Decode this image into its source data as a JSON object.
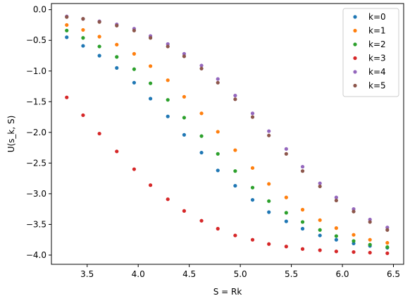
{
  "chart_data": {
    "type": "scatter",
    "title": "",
    "xlabel": "S = Rk",
    "ylabel": "U(s_k, S)",
    "xlim": [
      3.15,
      6.6
    ],
    "ylim": [
      -4.15,
      0.1
    ],
    "xticks": [
      "3.5",
      "4.0",
      "4.5",
      "5.0",
      "5.5",
      "6.0",
      "6.5"
    ],
    "xtick_values": [
      3.5,
      4.0,
      4.5,
      5.0,
      5.5,
      6.0,
      6.5
    ],
    "yticks": [
      "0.0",
      "−0.5",
      "−1.0",
      "−1.5",
      "−2.0",
      "−2.5",
      "−3.0",
      "−3.5",
      "−4.0"
    ],
    "ytick_values": [
      0.0,
      -0.5,
      -1.0,
      -1.5,
      -2.0,
      -2.5,
      -3.0,
      -3.5,
      -4.0
    ],
    "grid": false,
    "legend_position": "top-right",
    "x": [
      3.3,
      3.46,
      3.62,
      3.79,
      3.96,
      4.12,
      4.29,
      4.45,
      4.62,
      4.78,
      4.95,
      5.12,
      5.28,
      5.45,
      5.61,
      5.78,
      5.94,
      6.11,
      6.27,
      6.44
    ],
    "series": [
      {
        "name": "k=0",
        "color": "#1f77b4",
        "values": [
          -0.45,
          -0.59,
          -0.75,
          -0.95,
          -1.19,
          -1.45,
          -1.74,
          -2.04,
          -2.33,
          -2.62,
          -2.87,
          -3.1,
          -3.3,
          -3.45,
          -3.57,
          -3.68,
          -3.75,
          -3.81,
          -3.85,
          -3.88
        ]
      },
      {
        "name": "k=1",
        "color": "#ff7f0e",
        "values": [
          -0.25,
          -0.33,
          -0.44,
          -0.57,
          -0.72,
          -0.92,
          -1.15,
          -1.42,
          -1.69,
          -1.99,
          -2.29,
          -2.58,
          -2.84,
          -3.06,
          -3.26,
          -3.43,
          -3.56,
          -3.67,
          -3.75,
          -3.8
        ]
      },
      {
        "name": "k=2",
        "color": "#2ca02c",
        "values": [
          -0.34,
          -0.46,
          -0.6,
          -0.77,
          -0.97,
          -1.2,
          -1.47,
          -1.76,
          -2.06,
          -2.35,
          -2.63,
          -2.9,
          -3.12,
          -3.31,
          -3.46,
          -3.59,
          -3.69,
          -3.77,
          -3.83,
          -3.87
        ]
      },
      {
        "name": "k=3",
        "color": "#d62728",
        "values": [
          -1.43,
          -1.72,
          -2.02,
          -2.31,
          -2.6,
          -2.86,
          -3.09,
          -3.28,
          -3.44,
          -3.57,
          -3.68,
          -3.75,
          -3.82,
          -3.86,
          -3.9,
          -3.92,
          -3.94,
          -3.95,
          -3.96,
          -3.97
        ]
      },
      {
        "name": "k=4",
        "color": "#9467bd",
        "values": [
          -0.11,
          -0.15,
          -0.19,
          -0.24,
          -0.31,
          -0.43,
          -0.56,
          -0.72,
          -0.91,
          -1.13,
          -1.4,
          -1.69,
          -1.98,
          -2.27,
          -2.56,
          -2.83,
          -3.06,
          -3.25,
          -3.42,
          -3.55
        ]
      },
      {
        "name": "k=5",
        "color": "#8c564b",
        "values": [
          -0.12,
          -0.15,
          -0.2,
          -0.26,
          -0.34,
          -0.46,
          -0.6,
          -0.76,
          -0.96,
          -1.19,
          -1.46,
          -1.75,
          -2.05,
          -2.35,
          -2.63,
          -2.88,
          -3.11,
          -3.29,
          -3.46,
          -3.59
        ]
      }
    ]
  }
}
